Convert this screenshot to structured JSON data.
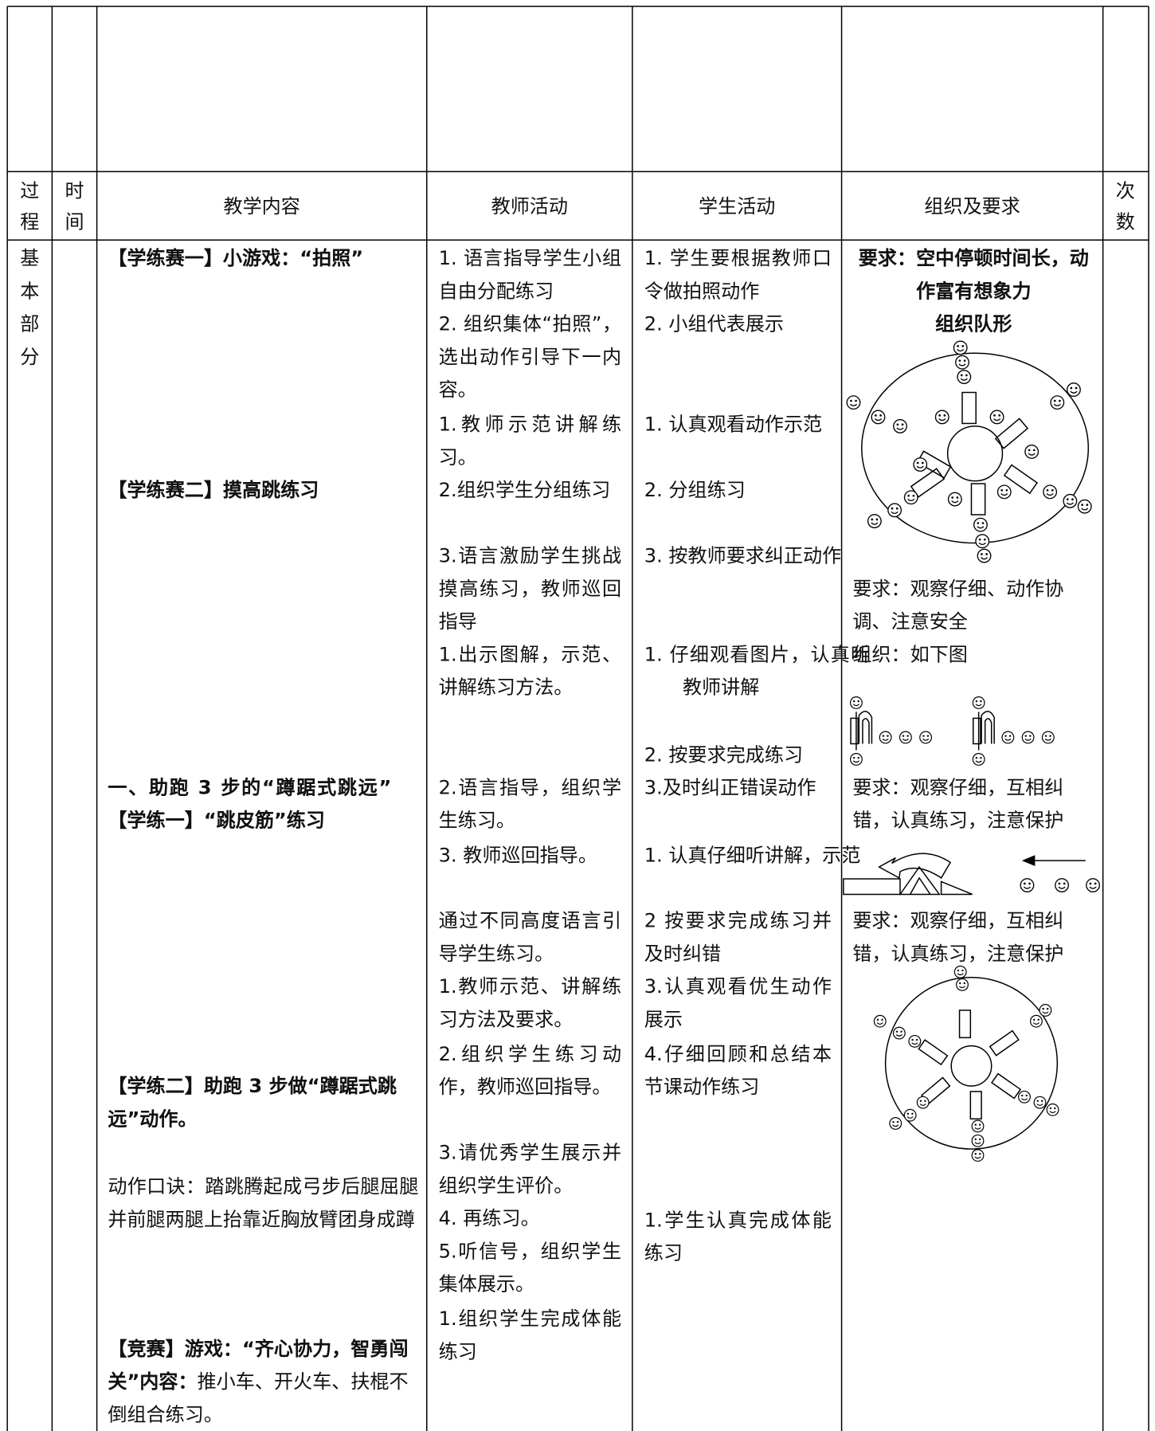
{
  "table": {
    "header": [
      "过程",
      "时间",
      "教学内容",
      "教师活动",
      "学生活动",
      "组织及要求",
      "次数"
    ],
    "stage": "基本部分",
    "content": [
      "【学练赛一】小游戏：“拍照”",
      "【学练赛二】摸高跳练习",
      "一、助跑 3 步的“蹲踞式跳远”",
      "【学练一】“跳皮筋”练习",
      "【学练二】助跑 3 步做“蹲踞式跳远”动作。",
      "动作口诀：踏跳腾起成弓步后腿屈腿并前腿两腿上抬靠近胸放臂团身成蹲",
      {
        "label": "【竞赛】游戏：“齐心协力，智勇闯关”内容：",
        "text": "推小车、开火车、扶棍不倒组合练习。"
      }
    ],
    "teacher": [
      "1. 语言指导学生小组自由分配练习",
      "2. 组织集体“拍照”，选出动作引导下一内容。",
      "1.教师示范讲解练习。",
      "2.组织学生分组练习",
      "3.语言激励学生挑战摸高练习，教师巡回指导",
      "1.出示图解，示范、讲解练习方法。",
      "2.语言指导，组织学生练习。",
      "3. 教师巡回指导。",
      "通过不同高度语言引导学生练习。",
      "1.教师示范、讲解练习方法及要求。",
      "2.组织学生练习动作，教师巡回指导。",
      "3.请优秀学生展示并组织学生评价。",
      "4. 再练习。",
      "5.听信号，组织学生集体展示。",
      "1.组织学生完成体能练习"
    ],
    "student": [
      "1.  学生要根据教师口令做拍照动作",
      "2.  小组代表展示",
      "1.  认真观看动作示范",
      "2.  分组练习",
      "3.  按教师要求纠正动作",
      "1.  仔细观看图片，认真听教师讲解",
      "2.  按要求完成练习",
      "3.及时纠正错误动作",
      "1.  认真仔细听讲解，示范",
      "2 按要求完成练习并及时纠错",
      "3.认真观看优生动作展示",
      "4.仔细回顾和总结本节课动作练习",
      "1.学生认真完成体能练习"
    ],
    "organization": [
      "要求：空中停顿时间长，动作富有想象力",
      "组织队形",
      "要求：观察仔细、动作协调、注意安全",
      "组织：如下图",
      "要求：观察仔细，互相纠错，认真练习，注意保护",
      "要求：观察仔细，互相纠错，认真练习，注意保护"
    ]
  }
}
